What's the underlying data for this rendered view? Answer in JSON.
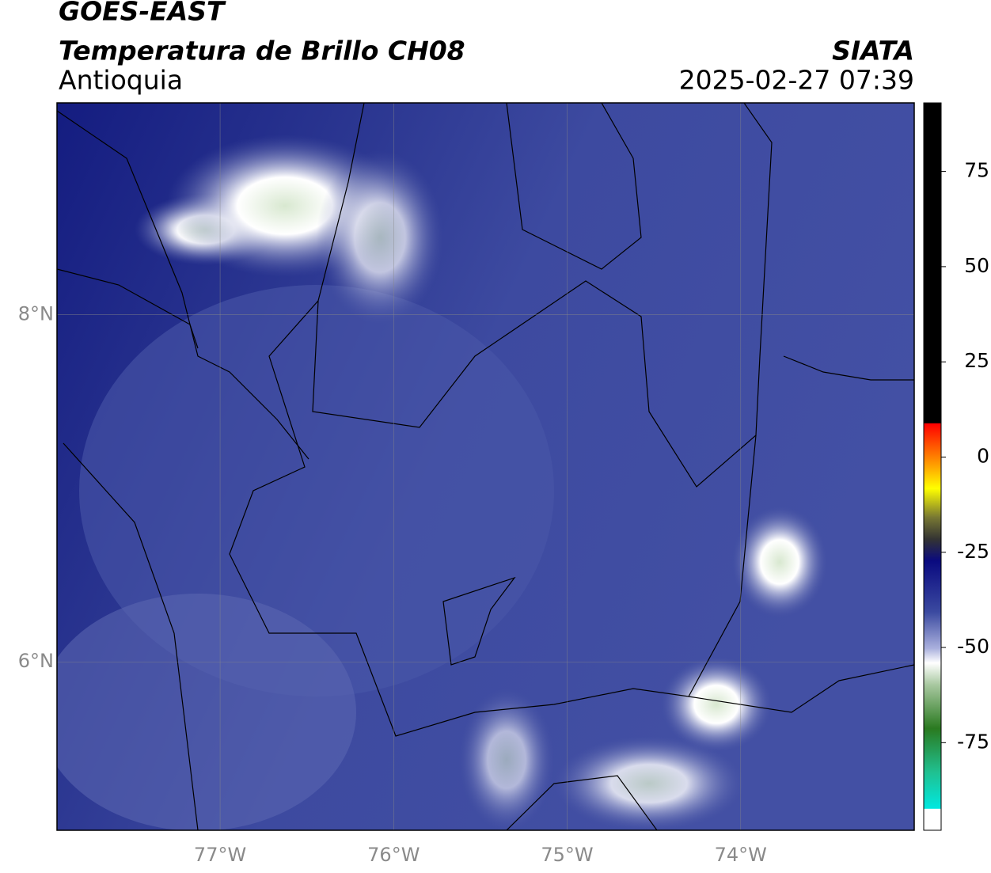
{
  "header": {
    "title": "GOES-EAST",
    "subtitle": "Temperatura de Brillo CH08",
    "region": "Antioquia",
    "source": "SIATA",
    "timestamp": "2025-02-27 07:39"
  },
  "map": {
    "xlim": [
      -77.94,
      -73.0
    ],
    "ylim": [
      5.03,
      9.22
    ],
    "xticks": [
      {
        "value": -77,
        "label": "77°W"
      },
      {
        "value": -76,
        "label": "76°W"
      },
      {
        "value": -75,
        "label": "75°W"
      },
      {
        "value": -74,
        "label": "74°W"
      }
    ],
    "yticks": [
      {
        "value": 6,
        "label": "6°N"
      },
      {
        "value": 8,
        "label": "8°N"
      }
    ]
  },
  "colorbar": {
    "lim": [
      -98,
      93
    ],
    "ticks": [
      75,
      50,
      25,
      0,
      -25,
      -50,
      -75
    ]
  }
}
